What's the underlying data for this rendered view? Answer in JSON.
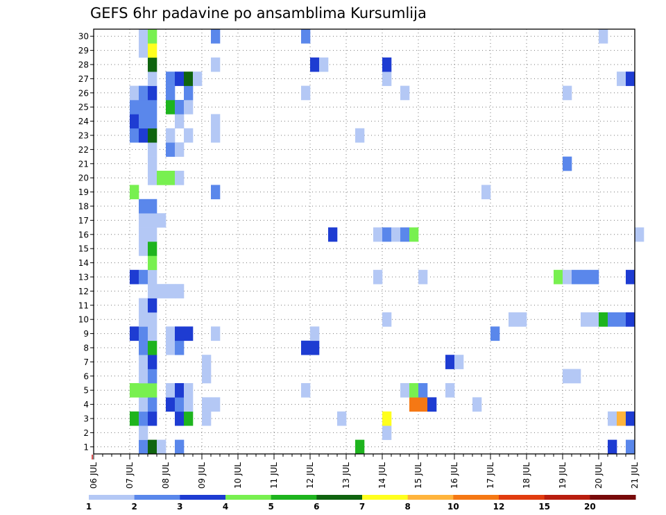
{
  "chart_data": {
    "type": "heatmap",
    "title": "GEFS 6hr padavine po ansamblima Kursumlija",
    "x_axis": {
      "unit": "6-hour steps",
      "start": "06 JUL 00Z",
      "end": "21 JUL 00Z",
      "tick_labels": [
        "06 JUL",
        "07 JUL",
        "08 JUL",
        "09 JUL",
        "10 JUL",
        "11 JUL",
        "12 JUL",
        "13 JUL",
        "14 JUL",
        "15 JUL",
        "16 JUL",
        "17 JUL",
        "18 JUL",
        "19 JUL",
        "20 JUL",
        "21 JUL"
      ]
    },
    "y_axis": {
      "label": "",
      "tick_labels": [
        1,
        2,
        3,
        4,
        5,
        6,
        7,
        8,
        9,
        10,
        11,
        12,
        13,
        14,
        15,
        16,
        17,
        18,
        19,
        20,
        21,
        22,
        23,
        24,
        25,
        26,
        27,
        28,
        29,
        30
      ]
    },
    "grid": true,
    "colorbar": {
      "position": "bottom",
      "labels": [
        "1",
        "2",
        "3",
        "4",
        "5",
        "6",
        "7",
        "8",
        "10",
        "12",
        "15",
        "20"
      ],
      "colors": [
        "#b4c8f5",
        "#5a87eb",
        "#1e3cd2",
        "#78f050",
        "#1eb41e",
        "#0f640f",
        "#ffff1e",
        "#ffb43c",
        "#f57814",
        "#e13c0f",
        "#b91e0f",
        "#780a0a"
      ]
    },
    "cells": [
      [
        1,
        5,
        2
      ],
      [
        1,
        6,
        6
      ],
      [
        1,
        7,
        1
      ],
      [
        1,
        9,
        2
      ],
      [
        1,
        29,
        5
      ],
      [
        1,
        57,
        3
      ],
      [
        1,
        59,
        2
      ],
      [
        2,
        5,
        1
      ],
      [
        2,
        32,
        1
      ],
      [
        3,
        4,
        5
      ],
      [
        3,
        5,
        2
      ],
      [
        3,
        6,
        3
      ],
      [
        3,
        9,
        3
      ],
      [
        3,
        10,
        5
      ],
      [
        3,
        12,
        1
      ],
      [
        3,
        27,
        1
      ],
      [
        3,
        32,
        7
      ],
      [
        3,
        57,
        1
      ],
      [
        3,
        58,
        8
      ],
      [
        3,
        59,
        3
      ],
      [
        4,
        5,
        1
      ],
      [
        4,
        6,
        2
      ],
      [
        4,
        8,
        3
      ],
      [
        4,
        9,
        2
      ],
      [
        4,
        10,
        1
      ],
      [
        4,
        12,
        1
      ],
      [
        4,
        13,
        1
      ],
      [
        4,
        35,
        9
      ],
      [
        4,
        36,
        9
      ],
      [
        4,
        37,
        3
      ],
      [
        4,
        42,
        1
      ],
      [
        5,
        4,
        4
      ],
      [
        5,
        5,
        4
      ],
      [
        5,
        6,
        4
      ],
      [
        5,
        8,
        1
      ],
      [
        5,
        9,
        3
      ],
      [
        5,
        10,
        1
      ],
      [
        5,
        23,
        1
      ],
      [
        5,
        34,
        1
      ],
      [
        5,
        35,
        4
      ],
      [
        5,
        36,
        2
      ],
      [
        5,
        39,
        1
      ],
      [
        6,
        5,
        1
      ],
      [
        6,
        6,
        2
      ],
      [
        6,
        12,
        1
      ],
      [
        6,
        52,
        1
      ],
      [
        6,
        53,
        1
      ],
      [
        7,
        5,
        1
      ],
      [
        7,
        6,
        3
      ],
      [
        7,
        12,
        1
      ],
      [
        7,
        39,
        3
      ],
      [
        7,
        40,
        1
      ],
      [
        8,
        5,
        2
      ],
      [
        8,
        6,
        5
      ],
      [
        8,
        8,
        1
      ],
      [
        8,
        9,
        2
      ],
      [
        8,
        23,
        3
      ],
      [
        8,
        24,
        3
      ],
      [
        9,
        4,
        3
      ],
      [
        9,
        5,
        2
      ],
      [
        9,
        6,
        1
      ],
      [
        9,
        8,
        1
      ],
      [
        9,
        9,
        3
      ],
      [
        9,
        10,
        3
      ],
      [
        9,
        13,
        1
      ],
      [
        9,
        24,
        1
      ],
      [
        9,
        44,
        2
      ],
      [
        10,
        5,
        1
      ],
      [
        10,
        6,
        1
      ],
      [
        10,
        32,
        1
      ],
      [
        10,
        46,
        1
      ],
      [
        10,
        47,
        1
      ],
      [
        10,
        54,
        1
      ],
      [
        10,
        55,
        1
      ],
      [
        10,
        56,
        5
      ],
      [
        10,
        57,
        2
      ],
      [
        10,
        58,
        2
      ],
      [
        10,
        59,
        3
      ],
      [
        11,
        5,
        1
      ],
      [
        11,
        6,
        3
      ],
      [
        12,
        6,
        1
      ],
      [
        12,
        7,
        1
      ],
      [
        12,
        8,
        1
      ],
      [
        12,
        9,
        1
      ],
      [
        13,
        4,
        3
      ],
      [
        13,
        5,
        2
      ],
      [
        13,
        6,
        1
      ],
      [
        13,
        31,
        1
      ],
      [
        13,
        36,
        1
      ],
      [
        13,
        51,
        4
      ],
      [
        13,
        52,
        1
      ],
      [
        13,
        53,
        2
      ],
      [
        13,
        54,
        2
      ],
      [
        13,
        55,
        2
      ],
      [
        13,
        59,
        3
      ],
      [
        14,
        6,
        4
      ],
      [
        15,
        5,
        1
      ],
      [
        15,
        6,
        5
      ],
      [
        16,
        5,
        1
      ],
      [
        16,
        6,
        1
      ],
      [
        16,
        26,
        3
      ],
      [
        16,
        31,
        1
      ],
      [
        16,
        32,
        2
      ],
      [
        16,
        33,
        1
      ],
      [
        16,
        34,
        2
      ],
      [
        16,
        35,
        4
      ],
      [
        16,
        60,
        1
      ],
      [
        17,
        5,
        1
      ],
      [
        17,
        6,
        1
      ],
      [
        17,
        7,
        1
      ],
      [
        18,
        5,
        2
      ],
      [
        18,
        6,
        2
      ],
      [
        19,
        4,
        4
      ],
      [
        19,
        13,
        2
      ],
      [
        19,
        43,
        1
      ],
      [
        20,
        6,
        1
      ],
      [
        20,
        7,
        4
      ],
      [
        20,
        8,
        4
      ],
      [
        20,
        9,
        1
      ],
      [
        21,
        6,
        1
      ],
      [
        21,
        52,
        2
      ],
      [
        22,
        6,
        1
      ],
      [
        22,
        8,
        2
      ],
      [
        22,
        9,
        1
      ],
      [
        23,
        4,
        2
      ],
      [
        23,
        5,
        3
      ],
      [
        23,
        6,
        6
      ],
      [
        23,
        8,
        1
      ],
      [
        23,
        10,
        1
      ],
      [
        23,
        13,
        1
      ],
      [
        23,
        29,
        1
      ],
      [
        24,
        4,
        3
      ],
      [
        24,
        5,
        2
      ],
      [
        24,
        6,
        2
      ],
      [
        24,
        9,
        1
      ],
      [
        24,
        13,
        1
      ],
      [
        25,
        4,
        2
      ],
      [
        25,
        5,
        2
      ],
      [
        25,
        6,
        2
      ],
      [
        25,
        8,
        5
      ],
      [
        25,
        9,
        2
      ],
      [
        25,
        10,
        1
      ],
      [
        26,
        4,
        1
      ],
      [
        26,
        5,
        2
      ],
      [
        26,
        6,
        3
      ],
      [
        26,
        8,
        2
      ],
      [
        26,
        10,
        2
      ],
      [
        26,
        23,
        1
      ],
      [
        26,
        34,
        1
      ],
      [
        26,
        52,
        1
      ],
      [
        27,
        6,
        1
      ],
      [
        27,
        8,
        2
      ],
      [
        27,
        9,
        3
      ],
      [
        27,
        10,
        6
      ],
      [
        27,
        11,
        1
      ],
      [
        27,
        32,
        1
      ],
      [
        27,
        58,
        1
      ],
      [
        27,
        59,
        3
      ],
      [
        28,
        6,
        6
      ],
      [
        28,
        13,
        1
      ],
      [
        28,
        24,
        3
      ],
      [
        28,
        25,
        1
      ],
      [
        28,
        32,
        3
      ],
      [
        29,
        5,
        1
      ],
      [
        29,
        6,
        7
      ],
      [
        30,
        5,
        1
      ],
      [
        30,
        6,
        4
      ],
      [
        30,
        13,
        2
      ],
      [
        30,
        23,
        2
      ],
      [
        30,
        56,
        1
      ]
    ]
  }
}
